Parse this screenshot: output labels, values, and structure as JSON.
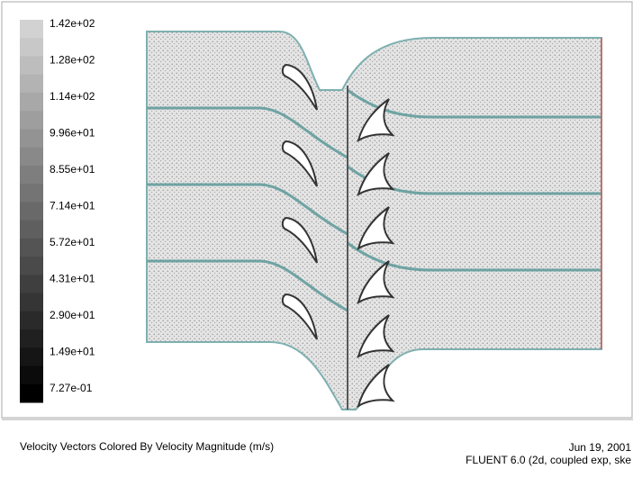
{
  "colorbar": {
    "labels": [
      "1.42e+02",
      "1.28e+02",
      "1.14e+02",
      "9.96e+01",
      "8.55e+01",
      "7.14e+01",
      "5.72e+01",
      "4.31e+01",
      "2.90e+01",
      "1.49e+01",
      "7.27e-01"
    ]
  },
  "footer": {
    "title": "Velocity Vectors Colored By Velocity Magnitude (m/s)",
    "date": "Jun 19, 2001",
    "version": "FLUENT 6.0 (2d, coupled exp, ske"
  }
}
